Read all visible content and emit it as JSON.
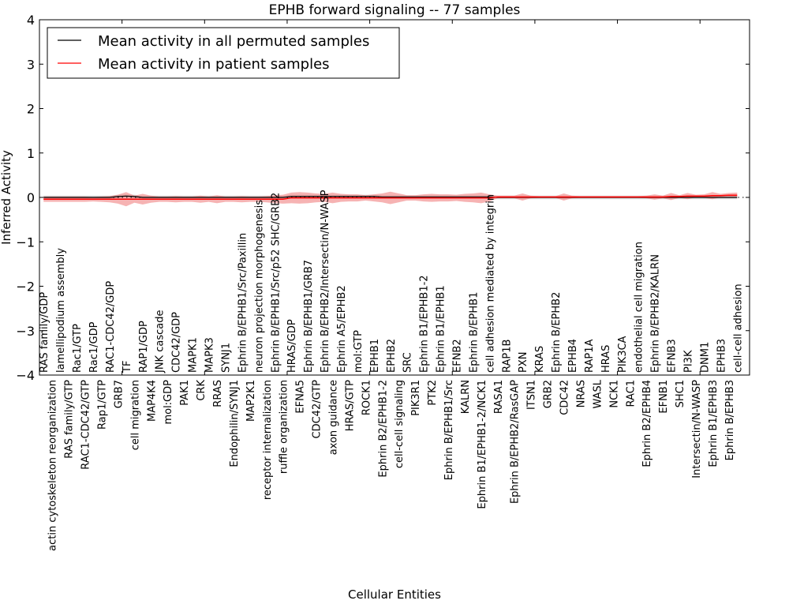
{
  "chart_data": {
    "type": "line",
    "title": "EPHB forward signaling -- 77 samples",
    "xlabel": "Cellular Entities",
    "ylabel": "Inferred Activity",
    "ylim": [
      -4,
      4
    ],
    "yticks": [
      -4,
      -3,
      -2,
      -1,
      0,
      1,
      2,
      3,
      4
    ],
    "ytick_labels": [
      "−4",
      "−3",
      "−2",
      "−1",
      "0",
      "1",
      "2",
      "3",
      "4"
    ],
    "legend_position": "top-left",
    "legend": [
      "Mean activity in all permuted samples",
      "Mean activity in patient samples"
    ],
    "colors": {
      "permuted": "#000000",
      "patient": "#ff0000",
      "patient_band": "#f08080",
      "permuted_band": "#c8c8c8"
    },
    "categories": [
      "RAS family/GDP",
      "actin cytoskeleton reorganization",
      "lamellipodium assembly",
      "RAS family/GTP",
      "Rac1/GTP",
      "RAC1-CDC42/GTP",
      "Rac1/GDP",
      "Rap1/GTP",
      "RAC1-CDC42/GDP",
      "GRB7",
      "TF",
      "cell migration",
      "RAP1/GDP",
      "MAP4K4",
      "JNK cascade",
      "mol:GDP",
      "CDC42/GDP",
      "PAK1",
      "MAPK1",
      "CRK",
      "MAPK3",
      "RRAS",
      "SYNJ1",
      "Endophilin/SYNJ1",
      "Ephrin B/EPHB1/Src/Paxillin",
      "MAP2K1",
      "neuron projection morphogenesis",
      "receptor internalization",
      "Ephrin B/EPHB1/Src/p52 SHC/GRB2",
      "ruffle organization",
      "HRAS/GDP",
      "EFNA5",
      "Ephrin B/EPHB1/GRB7",
      "CDC42/GTP",
      "Ephrin B/EPHB2/Intersectin/N-WASP",
      "axon guidance",
      "Ephrin A5/EPHB2",
      "HRAS/GTP",
      "mol:GTP",
      "ROCK1",
      "EPHB1",
      "Ephrin B2/EPHB1-2",
      "EPHB2",
      "cell-cell signaling",
      "SRC",
      "PIK3R1",
      "Ephrin B1/EPHB1-2",
      "PTK2",
      "Ephrin B1/EPHB1",
      "Ephrin B/EPHB1/Src",
      "EFNB2",
      "KALRN",
      "Ephrin B/EPHB1",
      "Ephrin B1/EPHB1-2/NCK1",
      "cell adhesion mediated by integrin",
      "RASA1",
      "RAP1B",
      "Ephrin B/EPHB2/RasGAP",
      "PXN",
      "ITSN1",
      "KRAS",
      "GRB2",
      "Ephrin B/EPHB2",
      "CDC42",
      "EPHB4",
      "NRAS",
      "RAP1A",
      "WASL",
      "HRAS",
      "NCK1",
      "PIK3CA",
      "RAC1",
      "endothelial cell migration",
      "Ephrin B2/EPHB4",
      "Ephrin B/EPHB2/KALRN",
      "EFNB1",
      "EFNB3",
      "SHC1",
      "PI3K",
      "Intersectin/N-WASP",
      "DNM1",
      "Ephrin B1/EPHB3",
      "EPHB3",
      "Ephrin B/EPHB3",
      "cell-cell adhesion"
    ],
    "series": [
      {
        "name": "Mean activity in all permuted samples",
        "values": [
          0,
          0,
          0,
          0,
          0,
          0,
          0,
          0,
          0,
          0.02,
          0.03,
          0.02,
          0,
          0,
          0,
          0,
          0,
          0,
          0,
          0,
          0,
          0,
          0,
          0,
          0,
          0,
          0,
          0,
          0,
          0,
          0.02,
          0.02,
          0.02,
          0.02,
          0.02,
          0.02,
          0.02,
          0.02,
          0.02,
          0.02,
          0.02,
          0.01,
          0.01,
          0.01,
          0.01,
          0.01,
          0.01,
          0.01,
          0.01,
          0.01,
          0.01,
          0.01,
          0.01,
          0.01,
          0.01,
          0,
          0,
          0,
          0,
          0,
          0,
          0,
          0,
          0,
          0,
          0,
          0,
          0,
          0,
          0,
          0,
          0,
          0,
          0,
          0,
          0,
          0,
          0,
          0,
          0,
          0,
          0,
          0,
          0,
          0
        ],
        "spread": 0.04
      },
      {
        "name": "Mean activity in patient samples",
        "values": [
          -0.04,
          -0.04,
          -0.04,
          -0.04,
          -0.04,
          -0.04,
          -0.04,
          -0.04,
          -0.04,
          -0.04,
          -0.04,
          -0.04,
          -0.04,
          -0.04,
          -0.04,
          -0.04,
          -0.04,
          -0.04,
          -0.04,
          -0.04,
          -0.04,
          -0.04,
          -0.04,
          -0.04,
          -0.04,
          -0.04,
          -0.04,
          -0.04,
          -0.04,
          -0.04,
          -0.01,
          -0.01,
          -0.01,
          -0.01,
          -0.01,
          -0.01,
          -0.01,
          -0.01,
          -0.01,
          -0.01,
          -0.01,
          -0.01,
          -0.01,
          -0.01,
          -0.01,
          -0.01,
          -0.01,
          -0.01,
          -0.01,
          -0.01,
          -0.01,
          -0.01,
          -0.01,
          -0.01,
          -0.01,
          0.01,
          0.01,
          0.01,
          0.01,
          0.01,
          0.01,
          0.01,
          0.01,
          0.01,
          0.01,
          0.01,
          0.01,
          0.01,
          0.01,
          0.01,
          0.01,
          0.01,
          0.01,
          0.01,
          0.01,
          0.01,
          0.02,
          0.02,
          0.03,
          0.03,
          0.03,
          0.04,
          0.04,
          0.05,
          0.05
        ],
        "spread": [
          0.06,
          0.06,
          0.06,
          0.06,
          0.06,
          0.06,
          0.05,
          0.06,
          0.07,
          0.1,
          0.16,
          0.08,
          0.12,
          0.08,
          0.06,
          0.06,
          0.07,
          0.06,
          0.06,
          0.08,
          0.06,
          0.09,
          0.06,
          0.06,
          0.07,
          0.06,
          0.06,
          0.07,
          0.09,
          0.1,
          0.12,
          0.13,
          0.12,
          0.1,
          0.09,
          0.12,
          0.09,
          0.08,
          0.08,
          0.06,
          0.08,
          0.1,
          0.14,
          0.1,
          0.06,
          0.06,
          0.08,
          0.09,
          0.08,
          0.08,
          0.07,
          0.09,
          0.1,
          0.12,
          0.08,
          0.03,
          0.03,
          0.03,
          0.08,
          0.03,
          0.02,
          0.02,
          0.02,
          0.08,
          0.03,
          0.02,
          0.02,
          0.02,
          0.02,
          0.02,
          0.02,
          0.02,
          0.02,
          0.03,
          0.06,
          0.03,
          0.08,
          0.03,
          0.07,
          0.03,
          0.04,
          0.08,
          0.04,
          0.05,
          0.06
        ]
      }
    ]
  }
}
